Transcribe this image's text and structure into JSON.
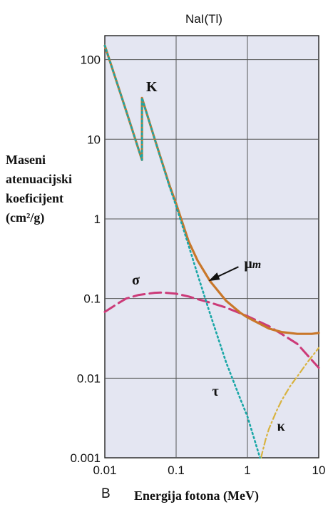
{
  "chart_data": {
    "type": "line",
    "title": "NaI(Tl)",
    "panel_label": "B",
    "xlabel": "Energija fotona (MeV)",
    "ylabel_lines": [
      "Maseni",
      "atenuacijski",
      "koeficijent",
      "(cm²/g)"
    ],
    "x_scale": "log",
    "y_scale": "log",
    "xlim": [
      0.01,
      10
    ],
    "ylim": [
      0.001,
      200
    ],
    "x_ticks": [
      0.01,
      0.1,
      1,
      10
    ],
    "x_tick_labels": [
      "0.01",
      "0.1",
      "1",
      "10"
    ],
    "y_ticks": [
      0.001,
      0.01,
      0.1,
      1,
      10,
      100
    ],
    "y_tick_labels": [
      "0.001",
      "0.01",
      "0.1",
      "1",
      "10",
      "100"
    ],
    "grid": true,
    "background_color": "#e4e6f2",
    "annotations": [
      {
        "text": "K",
        "x": 0.038,
        "y": 40
      },
      {
        "text": "σ",
        "x": 0.024,
        "y": 0.15
      },
      {
        "text": "τ",
        "x": 0.32,
        "y": 0.006
      },
      {
        "text": "κ",
        "x": 2.6,
        "y": 0.0022
      },
      {
        "text": "μm",
        "x": 0.9,
        "y": 0.24
      }
    ],
    "series": [
      {
        "label": "μm",
        "color": "#c9772a",
        "style": "solid",
        "x": [
          0.01,
          0.02,
          0.0332,
          0.0332,
          0.05,
          0.08,
          0.1,
          0.15,
          0.2,
          0.3,
          0.5,
          0.8,
          1,
          1.5,
          2,
          3,
          5,
          8,
          10
        ],
        "y": [
          150,
          22.5,
          5.5,
          33,
          10.1,
          2.7,
          1.55,
          0.52,
          0.3,
          0.165,
          0.094,
          0.066,
          0.058,
          0.048,
          0.042,
          0.038,
          0.036,
          0.036,
          0.037
        ]
      },
      {
        "label": "τ",
        "color": "#1aa7a7",
        "style": "dotted",
        "x": [
          0.01,
          0.02,
          0.0332,
          0.0332,
          0.05,
          0.08,
          0.1,
          0.15,
          0.2,
          0.3,
          0.5,
          0.8,
          1,
          1.5
        ],
        "y": [
          150,
          22.5,
          5.5,
          33,
          10.1,
          2.6,
          1.45,
          0.46,
          0.2,
          0.064,
          0.016,
          0.0054,
          0.0033,
          0.001
        ]
      },
      {
        "label": "σ",
        "color": "#cc3a78",
        "style": "dashed",
        "x": [
          0.01,
          0.015,
          0.02,
          0.03,
          0.05,
          0.065,
          0.1,
          0.15,
          0.2,
          0.3,
          0.5,
          1,
          2,
          3,
          5,
          10
        ],
        "y": [
          0.068,
          0.086,
          0.1,
          0.111,
          0.118,
          0.119,
          0.115,
          0.106,
          0.098,
          0.089,
          0.077,
          0.06,
          0.045,
          0.036,
          0.027,
          0.0135
        ]
      },
      {
        "label": "κ",
        "color": "#d8b340",
        "style": "dashdot",
        "x": [
          1.55,
          1.8,
          2,
          2.5,
          3,
          4,
          5,
          7,
          10
        ],
        "y": [
          0.001,
          0.0017,
          0.0023,
          0.0037,
          0.0052,
          0.008,
          0.0105,
          0.016,
          0.024
        ]
      }
    ]
  }
}
